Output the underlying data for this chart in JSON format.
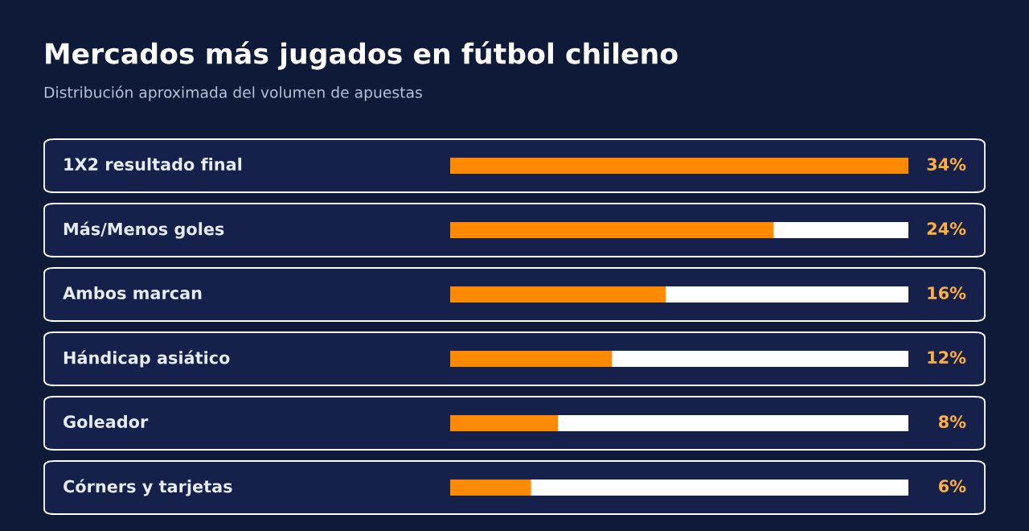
{
  "chart_data": {
    "type": "bar",
    "orientation": "horizontal",
    "title": "Mercados más jugados en fútbol chileno",
    "subtitle": "Distribución aproximada del volumen de apuestas",
    "categories": [
      "1X2 resultado final",
      "Más/Menos goles",
      "Ambos marcan",
      "Hándicap asiático",
      "Goleador",
      "Córners y tarjetas"
    ],
    "values": [
      34,
      24,
      16,
      12,
      8,
      6
    ],
    "value_labels": [
      "34%",
      "24%",
      "16%",
      "12%",
      "8%",
      "6%"
    ],
    "color": "#ff8a00",
    "xlim": [
      0,
      34
    ]
  }
}
